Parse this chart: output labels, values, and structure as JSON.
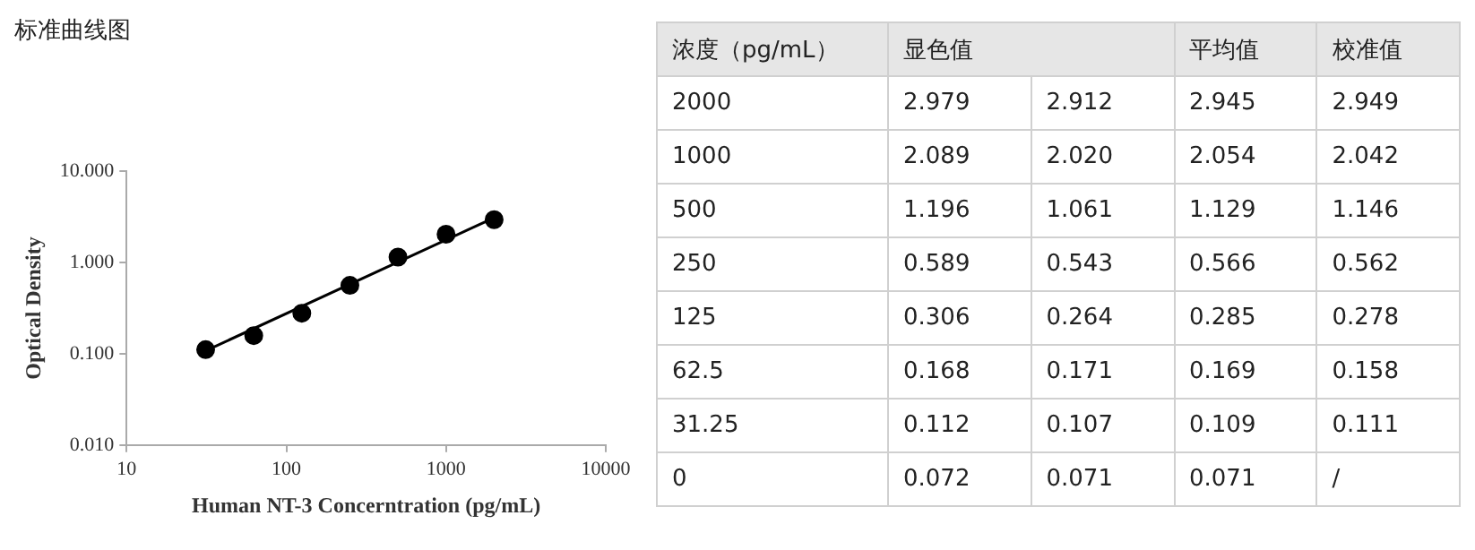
{
  "chart_data": [
    {
      "type": "scatter",
      "title": "标准曲线图",
      "xlabel": "Human NT-3 Concerntration (pg/mL)",
      "ylabel": "Optical Density",
      "x": [
        31.25,
        62.5,
        125,
        250,
        500,
        1000,
        2000
      ],
      "series": [
        {
          "type": "scatter",
          "color": "#000000",
          "marker": "circle",
          "values": [
            0.111,
            0.158,
            0.278,
            0.562,
            1.146,
            2.042,
            2.949
          ]
        },
        {
          "type": "line",
          "color": "#000000",
          "marker": "none",
          "line_style": "solid",
          "x": [
            31.25,
            2000
          ],
          "values": [
            0.108,
            3.1
          ]
        }
      ],
      "log": "xy",
      "xlim": [
        10,
        10000
      ],
      "xticks": [
        10,
        100,
        1000,
        10000
      ],
      "ylim": [
        0.01,
        10
      ],
      "yticks": [
        {
          "value": 0.01,
          "label": "0.010"
        },
        {
          "value": 0.1,
          "label": "0.100"
        },
        {
          "value": 1,
          "label": "1.000"
        },
        {
          "value": 10,
          "label": "10.000"
        }
      ],
      "grid": false,
      "legend": false
    },
    {
      "type": "other",
      "xlabel": "浓度（pg/mL）",
      "categories": [
        "2000",
        "1000",
        "500",
        "250",
        "125",
        "62.5",
        "31.25",
        "0"
      ],
      "series": [
        {
          "name": "显色值",
          "values": [
            2.979,
            2.089,
            1.196,
            0.589,
            0.306,
            0.168,
            0.112,
            0.072
          ],
          "value_labels": [
            "2.979",
            "2.089",
            "1.196",
            "0.589",
            "0.306",
            "0.168",
            "0.112",
            "0.072"
          ]
        },
        {
          "values": [
            2.912,
            2.02,
            1.061,
            0.543,
            0.264,
            0.171,
            0.107,
            0.071
          ],
          "value_labels": [
            "2.912",
            "2.020",
            "1.061",
            "0.543",
            "0.264",
            "0.171",
            "0.107",
            "0.071"
          ]
        },
        {
          "name": "平均值",
          "values": [
            2.945,
            2.054,
            1.129,
            0.566,
            0.285,
            0.169,
            0.109,
            0.071
          ],
          "value_labels": [
            "2.945",
            "2.054",
            "1.129",
            "0.566",
            "0.285",
            "0.169",
            "0.109",
            "0.071"
          ]
        },
        {
          "name": "校准值",
          "values": [
            2.949,
            2.042,
            1.146,
            0.562,
            0.278,
            0.158,
            0.111,
            null
          ],
          "value_labels": [
            "2.949",
            "2.042",
            "1.146",
            "0.562",
            "0.278",
            "0.158",
            "0.111",
            "/"
          ]
        }
      ]
    }
  ]
}
